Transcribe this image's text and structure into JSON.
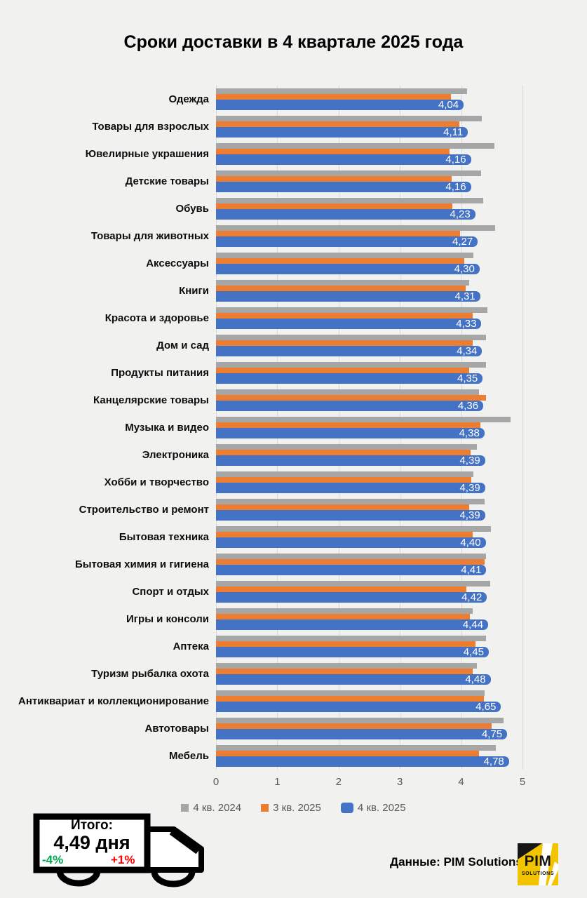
{
  "title": "Сроки доставки в 4 квартале 2025 года",
  "chart_data": {
    "type": "bar",
    "orientation": "horizontal",
    "title": "Сроки доставки в 4 квартале 2025 года",
    "xlabel": "",
    "ylabel": "",
    "xlim": [
      0,
      5
    ],
    "ticks": [
      "0",
      "1",
      "2",
      "3",
      "4",
      "5"
    ],
    "grid": true,
    "legend_position": "bottom",
    "categories": [
      "Одежда",
      "Товары для взрослых",
      "Ювелирные украшения",
      "Детские товары",
      "Обувь",
      "Товары для животных",
      "Аксессуары",
      "Книги",
      "Красота и здоровье",
      "Дом и сад",
      "Продукты питания",
      "Канцелярские товары",
      "Музыка и видео",
      "Электроника",
      "Хобби и творчество",
      "Строительство и ремонт",
      "Бытовая техника",
      "Бытовая химия и гигиена",
      "Спорт и отдых",
      "Игры и консоли",
      "Аптека",
      "Туризм рыбалка охота",
      "Антиквариат и коллекционирование",
      "Автотовары",
      "Мебель"
    ],
    "series": [
      {
        "name": "4 кв. 2024",
        "color": "#a6a6a6",
        "values": [
          4.1,
          4.34,
          4.54,
          4.32,
          4.36,
          4.55,
          4.2,
          4.13,
          4.43,
          4.4,
          4.41,
          4.29,
          4.81,
          4.26,
          4.2,
          4.38,
          4.48,
          4.4,
          4.47,
          4.19,
          4.41,
          4.26,
          4.38,
          4.69,
          4.57
        ]
      },
      {
        "name": "3 кв. 2025",
        "color": "#ed7d31",
        "values": [
          3.83,
          3.97,
          3.81,
          3.84,
          3.86,
          3.98,
          4.05,
          4.07,
          4.19,
          4.19,
          4.13,
          4.41,
          4.31,
          4.15,
          4.17,
          4.13,
          4.19,
          4.38,
          4.09,
          4.14,
          4.23,
          4.19,
          4.37,
          4.5,
          4.29
        ]
      },
      {
        "name": "4 кв. 2025",
        "color": "#4472c4",
        "values": [
          4.04,
          4.11,
          4.16,
          4.16,
          4.23,
          4.27,
          4.3,
          4.31,
          4.33,
          4.34,
          4.35,
          4.36,
          4.38,
          4.39,
          4.39,
          4.39,
          4.4,
          4.41,
          4.42,
          4.44,
          4.45,
          4.48,
          4.65,
          4.75,
          4.78
        ],
        "labels": [
          "4,04",
          "4,11",
          "4,16",
          "4,16",
          "4,23",
          "4,27",
          "4,30",
          "4,31",
          "4,33",
          "4,34",
          "4,35",
          "4,36",
          "4,38",
          "4,39",
          "4,39",
          "4,39",
          "4,40",
          "4,41",
          "4,42",
          "4,44",
          "4,45",
          "4,48",
          "4,65",
          "4,75",
          "4,78"
        ]
      }
    ]
  },
  "truck": {
    "total_label": "Итого:",
    "total_value": "4,49 дня",
    "delta_down": "-4%",
    "delta_up": "+1%",
    "delta_down_color": "#00a651",
    "delta_up_color": "#ff0000"
  },
  "footer": {
    "source": "Данные: PIM Solutions"
  },
  "logo": {
    "line1": "PIM",
    "line2": "SOLUTIONS",
    "bg_color": "#f2c400"
  }
}
